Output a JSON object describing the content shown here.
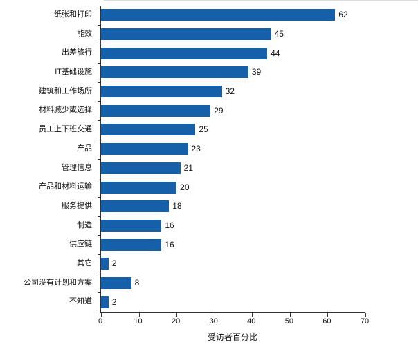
{
  "chart_data": {
    "type": "bar",
    "orientation": "horizontal",
    "title": "",
    "xlabel": "受访者百分比",
    "ylabel": "",
    "xlim": [
      0,
      70
    ],
    "xticks": [
      0,
      10,
      20,
      30,
      40,
      50,
      60,
      70
    ],
    "grid": false,
    "legend": "none",
    "value_labels_shown": true,
    "bar_color": "#1560a8",
    "axis_color": "#333333",
    "categories": [
      "纸张和打印",
      "能效",
      "出差旅行",
      "IT基础设施",
      "建筑和工作场所",
      "材料减少或选择",
      "员工上下班交通",
      "产品",
      "管理信息",
      "产品和材料运输",
      "服务提供",
      "制造",
      "供应链",
      "其它",
      "公司没有计划和方案",
      "不知道"
    ],
    "values": [
      62,
      45,
      44,
      39,
      32,
      29,
      25,
      23,
      21,
      20,
      18,
      16,
      16,
      2,
      8,
      2
    ]
  }
}
